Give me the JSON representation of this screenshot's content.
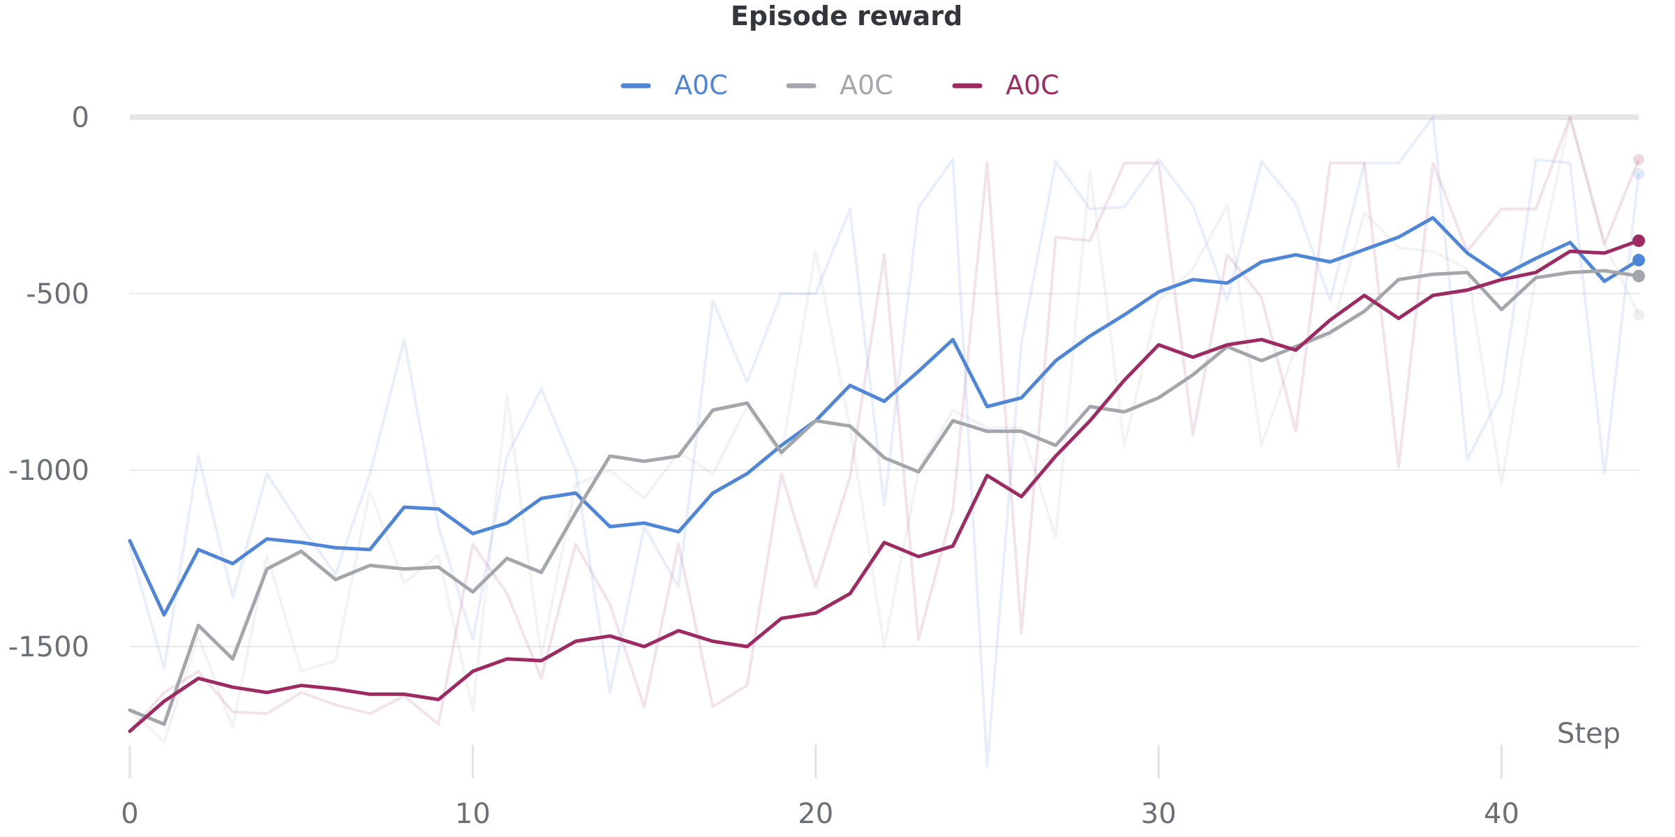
{
  "chart_data": {
    "type": "line",
    "title": "Episode reward",
    "xlabel": "Step",
    "ylabel": "",
    "xlim": [
      0,
      44
    ],
    "ylim": [
      -1870,
      0
    ],
    "xticks": [
      0,
      10,
      20,
      30,
      40
    ],
    "yticks": [
      0,
      -500,
      -1000,
      -1500
    ],
    "xtick_labels": [
      "0",
      "10",
      "20",
      "30",
      "40"
    ],
    "ytick_labels": [
      "0",
      "-500",
      "-1000",
      "-1500"
    ],
    "legend_position": "top-center",
    "x": [
      0,
      1,
      2,
      3,
      4,
      5,
      6,
      7,
      8,
      9,
      10,
      11,
      12,
      13,
      14,
      15,
      16,
      17,
      18,
      19,
      20,
      21,
      22,
      23,
      24,
      25,
      26,
      27,
      28,
      29,
      30,
      31,
      32,
      33,
      34,
      35,
      36,
      37,
      38,
      39,
      40,
      41,
      42,
      43,
      44
    ],
    "series": [
      {
        "name": "A0C",
        "color": "#4f86d8",
        "values": [
          -1200,
          -1410,
          -1225,
          -1265,
          -1195,
          -1205,
          -1220,
          -1225,
          -1105,
          -1110,
          -1180,
          -1150,
          -1080,
          -1065,
          -1160,
          -1150,
          -1175,
          -1065,
          -1010,
          -930,
          -860,
          -760,
          -805,
          -720,
          -630,
          -820,
          -795,
          -690,
          -620,
          -560,
          -495,
          -460,
          -470,
          -410,
          -390,
          -410,
          -375,
          -340,
          -285,
          -385,
          -450,
          -400,
          -355,
          -465,
          -405
        ],
        "raw_values": [
          -1220,
          -1560,
          -960,
          -1360,
          -1010,
          -1160,
          -1295,
          -1010,
          -630,
          -1160,
          -1480,
          -960,
          -770,
          -1000,
          -1630,
          -1160,
          -1330,
          -520,
          -750,
          -500,
          -500,
          -260,
          -1100,
          -255,
          -120,
          -1840,
          -640,
          -125,
          -260,
          -255,
          -120,
          -250,
          -520,
          -125,
          -245,
          -520,
          -130,
          -130,
          0,
          -970,
          -780,
          -120,
          -130,
          -1010,
          -160
        ]
      },
      {
        "name": "A0C",
        "color": "#a3a6ab",
        "values": [
          -1680,
          -1720,
          -1440,
          -1535,
          -1280,
          -1230,
          -1310,
          -1270,
          -1280,
          -1275,
          -1345,
          -1250,
          -1290,
          -1120,
          -960,
          -975,
          -960,
          -830,
          -810,
          -950,
          -860,
          -875,
          -965,
          -1005,
          -860,
          -890,
          -890,
          -930,
          -820,
          -835,
          -795,
          -730,
          -650,
          -690,
          -650,
          -610,
          -550,
          -460,
          -445,
          -440,
          -545,
          -455,
          -440,
          -435,
          -450
        ],
        "raw_values": [
          -1680,
          -1770,
          -1470,
          -1730,
          -1240,
          -1570,
          -1540,
          -1060,
          -1320,
          -1240,
          -1680,
          -790,
          -1530,
          -1040,
          -1000,
          -1080,
          -950,
          -1010,
          -820,
          -960,
          -380,
          -880,
          -1500,
          -1000,
          -830,
          -880,
          -880,
          -1190,
          -150,
          -930,
          -520,
          -430,
          -250,
          -930,
          -650,
          -620,
          -270,
          -370,
          -380,
          -430,
          -1040,
          -450,
          0,
          -360,
          -560
        ]
      },
      {
        "name": "A0C",
        "color": "#9e2a62",
        "values": [
          -1740,
          -1655,
          -1590,
          -1615,
          -1630,
          -1610,
          -1620,
          -1635,
          -1635,
          -1650,
          -1570,
          -1535,
          -1540,
          -1485,
          -1470,
          -1500,
          -1455,
          -1485,
          -1500,
          -1420,
          -1405,
          -1350,
          -1205,
          -1245,
          -1215,
          -1015,
          -1075,
          -960,
          -860,
          -745,
          -645,
          -680,
          -645,
          -630,
          -660,
          -575,
          -505,
          -570,
          -505,
          -490,
          -460,
          -440,
          -380,
          -385,
          -350
        ],
        "raw_values": [
          -1740,
          -1630,
          -1570,
          -1685,
          -1690,
          -1630,
          -1665,
          -1690,
          -1640,
          -1720,
          -1210,
          -1350,
          -1590,
          -1210,
          -1380,
          -1670,
          -1210,
          -1670,
          -1610,
          -1010,
          -1330,
          -1020,
          -390,
          -1480,
          -1110,
          -130,
          -1460,
          -340,
          -350,
          -130,
          -130,
          -900,
          -390,
          -510,
          -890,
          -130,
          -130,
          -990,
          -130,
          -380,
          -260,
          -260,
          0,
          -360,
          -120
        ]
      }
    ]
  }
}
